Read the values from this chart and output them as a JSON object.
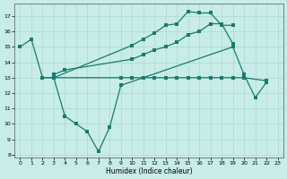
{
  "xlabel": "Humidex (Indice chaleur)",
  "line1_x": [
    0,
    1,
    2,
    3,
    4,
    5,
    6,
    7,
    8,
    9,
    19,
    20,
    21,
    22
  ],
  "line1_y": [
    15,
    15.5,
    13,
    13,
    10.5,
    10.0,
    9.5,
    8.2,
    9.8,
    12.5,
    15.0,
    13.2,
    11.7,
    12.7
  ],
  "line2_x": [
    2,
    3,
    9,
    10,
    11,
    12,
    13,
    14,
    15,
    16,
    17,
    18,
    19,
    20,
    22
  ],
  "line2_y": [
    13,
    13,
    13,
    13,
    13,
    13,
    13,
    13,
    13,
    13,
    13,
    13,
    13,
    13,
    12.8
  ],
  "line3_x": [
    3,
    4,
    10,
    11,
    12,
    13,
    14,
    15,
    16,
    17,
    18,
    19
  ],
  "line3_y": [
    13.2,
    13.5,
    14.2,
    14.5,
    14.8,
    15.0,
    15.3,
    15.8,
    16.0,
    16.5,
    16.5,
    15.2
  ],
  "line4_x": [
    3,
    10,
    11,
    12,
    13,
    14,
    15,
    16,
    17,
    18,
    19
  ],
  "line4_y": [
    13.0,
    15.1,
    15.5,
    15.9,
    16.4,
    16.5,
    17.3,
    17.2,
    17.2,
    16.4,
    16.4
  ],
  "ylim": [
    7.8,
    17.8
  ],
  "xlim": [
    -0.5,
    23.5
  ],
  "yticks": [
    8,
    9,
    10,
    11,
    12,
    13,
    14,
    15,
    16,
    17
  ],
  "xticks": [
    0,
    1,
    2,
    3,
    4,
    5,
    6,
    7,
    8,
    9,
    10,
    11,
    12,
    13,
    14,
    15,
    16,
    17,
    18,
    19,
    20,
    21,
    22,
    23
  ],
  "line_color": "#1a7a6e",
  "bg_color": "#c8ece8",
  "grid_color": "#aad8d0"
}
